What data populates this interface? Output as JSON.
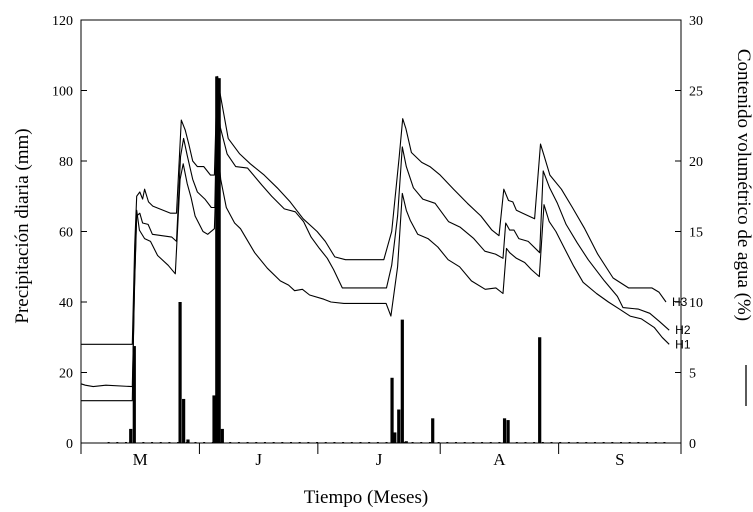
{
  "chart_data": {
    "type": "bar+line",
    "title": "",
    "xlabel": "Tiempo (Meses)",
    "ylabel_left": "Precipitación diaria (mm)",
    "ylabel_right": "Contenido volumétrico de agua (%)",
    "ylim_left": [
      0,
      120
    ],
    "ylim_right": [
      0,
      30
    ],
    "left_ticks": [
      "0",
      "20",
      "40",
      "60",
      "80",
      "100",
      "120"
    ],
    "right_ticks": [
      "0",
      "5",
      "10",
      "15",
      "20",
      "25",
      "30"
    ],
    "x_range_days": [
      0,
      152
    ],
    "months": [
      {
        "label": "M",
        "start": 0,
        "end": 30
      },
      {
        "label": "J",
        "start": 30,
        "end": 60
      },
      {
        "label": "J",
        "start": 60,
        "end": 91
      },
      {
        "label": "A",
        "start": 91,
        "end": 121
      },
      {
        "label": "S",
        "start": 121,
        "end": 152
      }
    ],
    "precipitation": [
      {
        "day": 12.6,
        "mm": 4
      },
      {
        "day": 13.5,
        "mm": 27.5
      },
      {
        "day": 25.1,
        "mm": 40
      },
      {
        "day": 26.0,
        "mm": 12.5
      },
      {
        "day": 27.1,
        "mm": 1
      },
      {
        "day": 33.7,
        "mm": 13.5
      },
      {
        "day": 34.4,
        "mm": 104
      },
      {
        "day": 35.0,
        "mm": 103.5
      },
      {
        "day": 35.8,
        "mm": 4
      },
      {
        "day": 78.8,
        "mm": 18.5
      },
      {
        "day": 79.5,
        "mm": 3
      },
      {
        "day": 80.5,
        "mm": 9.5
      },
      {
        "day": 81.4,
        "mm": 35
      },
      {
        "day": 82.4,
        "mm": 0.5
      },
      {
        "day": 89.1,
        "mm": 7
      },
      {
        "day": 107.3,
        "mm": 7
      },
      {
        "day": 108.2,
        "mm": 6.5
      },
      {
        "day": 116.2,
        "mm": 30
      }
    ],
    "series": [
      {
        "name": "H3",
        "points": [
          [
            0,
            7
          ],
          [
            13,
            7
          ],
          [
            13.6,
            14
          ],
          [
            14.1,
            17.5
          ],
          [
            14.9,
            17.8
          ],
          [
            15.6,
            17.3
          ],
          [
            16.1,
            18
          ],
          [
            17.1,
            17.1
          ],
          [
            18.2,
            16.8
          ],
          [
            22.7,
            16.3
          ],
          [
            24.2,
            16.3
          ],
          [
            25.4,
            22.9
          ],
          [
            26.4,
            22.2
          ],
          [
            27.3,
            21.2
          ],
          [
            28.3,
            20
          ],
          [
            29.5,
            19.6
          ],
          [
            31.1,
            19.6
          ],
          [
            32.8,
            19
          ],
          [
            33.8,
            19
          ],
          [
            34.5,
            26
          ],
          [
            35.3,
            24.7
          ],
          [
            37.3,
            21.6
          ],
          [
            40.2,
            20.5
          ],
          [
            42.9,
            19.8
          ],
          [
            46.4,
            19
          ],
          [
            49.7,
            18.1
          ],
          [
            53,
            17.1
          ],
          [
            56.3,
            15.9
          ],
          [
            59.8,
            15
          ],
          [
            61.9,
            14.3
          ],
          [
            64.3,
            13.2
          ],
          [
            67,
            13
          ],
          [
            76.7,
            13
          ],
          [
            78.7,
            15
          ],
          [
            80.6,
            20.3
          ],
          [
            81.5,
            23
          ],
          [
            82.3,
            22.3
          ],
          [
            83.7,
            20.6
          ],
          [
            86.3,
            19.9
          ],
          [
            88.4,
            19.6
          ],
          [
            91,
            19
          ],
          [
            94.4,
            18
          ],
          [
            97.9,
            17
          ],
          [
            101.3,
            16.1
          ],
          [
            104.1,
            15.1
          ],
          [
            105.9,
            14.7
          ],
          [
            107.1,
            18
          ],
          [
            108.3,
            17.2
          ],
          [
            109.4,
            17.1
          ],
          [
            110.3,
            16.5
          ],
          [
            111.9,
            16.3
          ],
          [
            114.9,
            15.9
          ],
          [
            116.4,
            21.2
          ],
          [
            117.3,
            20.4
          ],
          [
            118.8,
            19
          ],
          [
            121.7,
            18
          ],
          [
            124.5,
            16.7
          ],
          [
            127.6,
            15.2
          ],
          [
            130.9,
            13.4
          ],
          [
            134.8,
            11.7
          ],
          [
            138.7,
            11
          ],
          [
            141.4,
            11
          ],
          [
            144.6,
            11
          ],
          [
            146.4,
            10.7
          ],
          [
            148.2,
            10
          ]
        ]
      },
      {
        "name": "H2",
        "points": [
          [
            0,
            4.2
          ],
          [
            1.1,
            4.1
          ],
          [
            3.1,
            4
          ],
          [
            6.3,
            4.1
          ],
          [
            13,
            4
          ],
          [
            13.6,
            11.5
          ],
          [
            14.1,
            16.1
          ],
          [
            14.9,
            16.3
          ],
          [
            15.6,
            15.6
          ],
          [
            17,
            15.5
          ],
          [
            18.1,
            14.8
          ],
          [
            23,
            14.6
          ],
          [
            24.2,
            14.3
          ],
          [
            25.2,
            20.3
          ],
          [
            26,
            21.6
          ],
          [
            26.9,
            20.4
          ],
          [
            28.3,
            18.7
          ],
          [
            29.5,
            17.8
          ],
          [
            31.4,
            17.3
          ],
          [
            33,
            16.7
          ],
          [
            33.9,
            16.7
          ],
          [
            34.5,
            25
          ],
          [
            35.3,
            22.4
          ],
          [
            37,
            20.5
          ],
          [
            39.2,
            19.6
          ],
          [
            42.2,
            19.5
          ],
          [
            45.8,
            18.3
          ],
          [
            48.3,
            17.5
          ],
          [
            51.5,
            16.6
          ],
          [
            54.3,
            16.4
          ],
          [
            56.4,
            15.7
          ],
          [
            58.3,
            14.6
          ],
          [
            60.4,
            13.8
          ],
          [
            62.4,
            13.1
          ],
          [
            64,
            12.3
          ],
          [
            66.2,
            11
          ],
          [
            68.6,
            11
          ],
          [
            77.4,
            11
          ],
          [
            78.7,
            12.6
          ],
          [
            80.2,
            16.1
          ],
          [
            81.4,
            21
          ],
          [
            82.4,
            19.6
          ],
          [
            84.2,
            18.1
          ],
          [
            86.6,
            17.3
          ],
          [
            89.7,
            17
          ],
          [
            93.1,
            15.7
          ],
          [
            96.1,
            15.3
          ],
          [
            99.5,
            14.5
          ],
          [
            102.3,
            13.6
          ],
          [
            105,
            13.4
          ],
          [
            106.9,
            13.1
          ],
          [
            107.6,
            15.6
          ],
          [
            108.6,
            15.1
          ],
          [
            109.7,
            15.1
          ],
          [
            110.9,
            14.5
          ],
          [
            113.3,
            14.3
          ],
          [
            116.2,
            13.5
          ],
          [
            117.1,
            19.3
          ],
          [
            118.7,
            18.1
          ],
          [
            120.7,
            17
          ],
          [
            122.9,
            15.5
          ],
          [
            125.7,
            14.2
          ],
          [
            128.5,
            13
          ],
          [
            132.6,
            11.5
          ],
          [
            135.9,
            10.4
          ],
          [
            137.3,
            9.6
          ],
          [
            141.2,
            9.5
          ],
          [
            144.1,
            9.2
          ],
          [
            146.6,
            8.6
          ],
          [
            149,
            8
          ]
        ]
      },
      {
        "name": "H1",
        "points": [
          [
            0,
            3
          ],
          [
            13,
            3
          ],
          [
            13.5,
            10.7
          ],
          [
            14.1,
            16.5
          ],
          [
            14.8,
            15.1
          ],
          [
            16.1,
            14.5
          ],
          [
            17.6,
            14.3
          ],
          [
            19.4,
            13.3
          ],
          [
            22.1,
            12.6
          ],
          [
            23.9,
            12
          ],
          [
            25.1,
            18.7
          ],
          [
            25.9,
            19.8
          ],
          [
            26.9,
            18.4
          ],
          [
            27.9,
            17.4
          ],
          [
            28.9,
            16.1
          ],
          [
            30.9,
            15
          ],
          [
            32.1,
            14.8
          ],
          [
            33.8,
            15.2
          ],
          [
            34.5,
            21.3
          ],
          [
            35.4,
            18.7
          ],
          [
            36.8,
            16.7
          ],
          [
            38.9,
            15.6
          ],
          [
            40.4,
            15.2
          ],
          [
            44,
            13.5
          ],
          [
            47.2,
            12.4
          ],
          [
            50.5,
            11.5
          ],
          [
            52.6,
            11.2
          ],
          [
            54.1,
            10.8
          ],
          [
            56.1,
            10.9
          ],
          [
            57.9,
            10.5
          ],
          [
            61.5,
            10.2
          ],
          [
            63.3,
            10
          ],
          [
            66.6,
            9.9
          ],
          [
            77.3,
            9.9
          ],
          [
            78.5,
            9
          ],
          [
            80.2,
            12.5
          ],
          [
            81.4,
            17.7
          ],
          [
            82.4,
            16.5
          ],
          [
            83.4,
            15.8
          ],
          [
            85.3,
            14.8
          ],
          [
            87.9,
            14.5
          ],
          [
            90.4,
            13.9
          ],
          [
            93,
            13
          ],
          [
            95.9,
            12.5
          ],
          [
            98.9,
            11.5
          ],
          [
            102.4,
            10.9
          ],
          [
            105.1,
            11
          ],
          [
            106.9,
            10.6
          ],
          [
            107.8,
            13.8
          ],
          [
            108.6,
            13.5
          ],
          [
            110.3,
            13.1
          ],
          [
            112.4,
            12.8
          ],
          [
            114.1,
            12.3
          ],
          [
            116.1,
            11.8
          ],
          [
            117.3,
            16.9
          ],
          [
            118.6,
            15.7
          ],
          [
            120.3,
            15
          ],
          [
            122.3,
            13.9
          ],
          [
            124.7,
            12.6
          ],
          [
            127.2,
            11.4
          ],
          [
            130.6,
            10.6
          ],
          [
            133.6,
            10
          ],
          [
            136.4,
            9.5
          ],
          [
            139.1,
            9
          ],
          [
            142,
            8.8
          ],
          [
            145.2,
            8.2
          ],
          [
            147.2,
            7.5
          ],
          [
            149,
            7
          ]
        ]
      }
    ],
    "series_labels": [
      "H3",
      "H2",
      "H1"
    ]
  }
}
